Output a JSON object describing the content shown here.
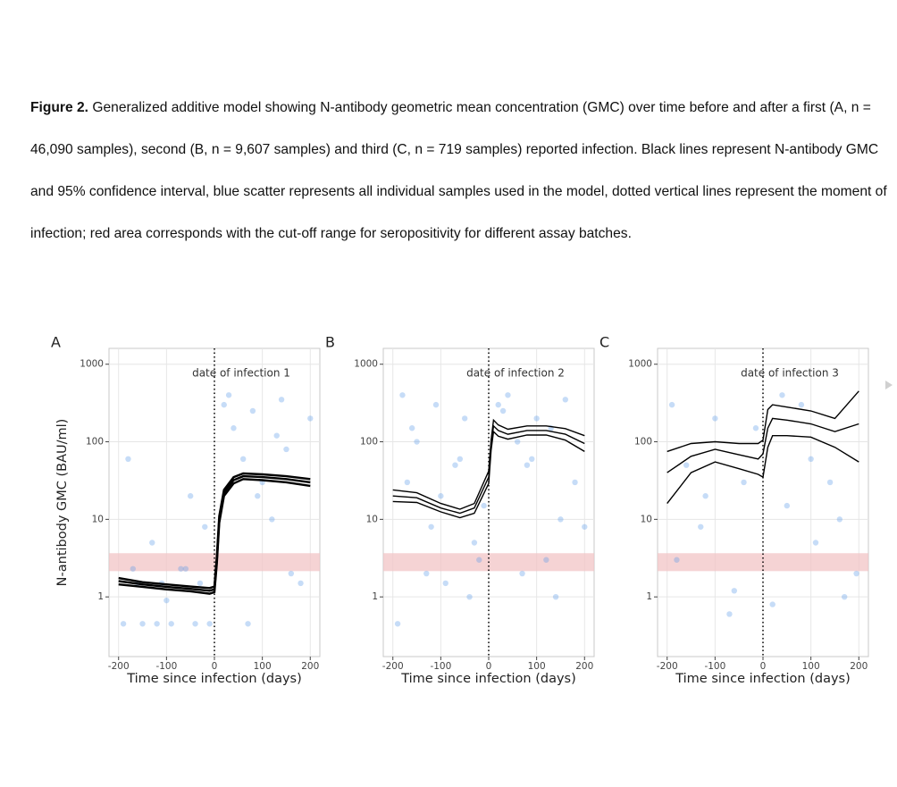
{
  "caption": {
    "label": "Figure 2.",
    "text": "Generalized additive model showing N-antibody geometric mean concentration (GMC) over time before and after a first (A, n = 46,090 samples), second (B, n = 9,607 samples) and third (C, n = 719 samples) reported infection. Black lines represent N-antibody GMC and 95% confidence interval, blue scatter represents all individual samples used in the model, dotted vertical lines represent the moment of infection; red area corresponds with the cut-off range for seropositivity for different assay batches."
  },
  "chart_data": [
    {
      "type": "line",
      "panel_label": "A",
      "annotation": "date of infection 1",
      "x_label": "Time since infection (days)",
      "y_label": "N-antibody GMC (BAU/ml)",
      "xlim": [
        -220,
        220
      ],
      "ylim": [
        0.17,
        1600
      ],
      "xticks": [
        -200,
        -100,
        0,
        100,
        200
      ],
      "yticks": [
        1,
        10,
        100,
        1000
      ],
      "log_y": true,
      "grid": true,
      "vline": 0,
      "cutoff_range": [
        2.15,
        3.66
      ],
      "cutoff_color": "#f2c4c6",
      "scatter": {
        "color": "#5b9be8",
        "x": [
          -190,
          -170,
          -150,
          -130,
          -110,
          -90,
          -70,
          -50,
          -30,
          -10,
          -180,
          -120,
          -60,
          -20,
          -160,
          -100,
          -40,
          20,
          40,
          60,
          80,
          100,
          120,
          140,
          160,
          180,
          200,
          30,
          90,
          150,
          70,
          130
        ],
        "y": [
          0.45,
          2.3,
          0.45,
          5,
          1.5,
          0.45,
          2.3,
          20,
          1.5,
          0.45,
          60,
          0.45,
          2.3,
          8,
          1.5,
          0.9,
          0.45,
          300,
          150,
          60,
          250,
          30,
          10,
          350,
          2,
          1.5,
          200,
          400,
          20,
          80,
          0.45,
          120
        ]
      },
      "series": [
        {
          "color": "#000000",
          "x": [
            -200,
            -150,
            -100,
            -50,
            -10,
            0,
            5,
            10,
            20,
            40,
            60,
            100,
            150,
            200
          ],
          "values": [
            1.6,
            1.45,
            1.35,
            1.27,
            1.2,
            1.25,
            3,
            10,
            22,
            32,
            36,
            35,
            33,
            30
          ]
        },
        {
          "color": "#000000",
          "x": [
            -200,
            -150,
            -100,
            -50,
            -10,
            0,
            5,
            10,
            20,
            40,
            60,
            100,
            150,
            200
          ],
          "values": [
            1.75,
            1.55,
            1.45,
            1.36,
            1.3,
            1.36,
            3.3,
            11,
            24,
            35,
            39,
            38,
            36,
            33
          ]
        },
        {
          "color": "#000000",
          "x": [
            -200,
            -150,
            -100,
            -50,
            -10,
            0,
            5,
            10,
            20,
            40,
            60,
            100,
            150,
            200
          ],
          "values": [
            1.45,
            1.35,
            1.25,
            1.18,
            1.1,
            1.15,
            2.7,
            9,
            20,
            29,
            33,
            32,
            30,
            27
          ]
        }
      ]
    },
    {
      "type": "line",
      "panel_label": "B",
      "annotation": "date of infection 2",
      "x_label": "Time since infection (days)",
      "xlim": [
        -220,
        220
      ],
      "ylim": [
        0.17,
        1600
      ],
      "xticks": [
        -200,
        -100,
        0,
        100,
        200
      ],
      "yticks": [
        1,
        10,
        100,
        1000
      ],
      "log_y": true,
      "grid": true,
      "vline": 0,
      "cutoff_range": [
        2.15,
        3.66
      ],
      "cutoff_color": "#f2c4c6",
      "scatter": {
        "color": "#5b9be8",
        "x": [
          -190,
          -170,
          -150,
          -130,
          -110,
          -90,
          -70,
          -50,
          -30,
          -10,
          -180,
          -120,
          -60,
          -20,
          -160,
          -100,
          -40,
          20,
          40,
          60,
          80,
          100,
          120,
          140,
          160,
          180,
          200,
          30,
          90,
          150,
          70,
          130
        ],
        "y": [
          0.45,
          30,
          100,
          2,
          300,
          1.5,
          50,
          200,
          5,
          15,
          400,
          8,
          60,
          3,
          150,
          20,
          1,
          300,
          400,
          100,
          50,
          200,
          3,
          1,
          350,
          30,
          8,
          250,
          60,
          10,
          2,
          150
        ]
      },
      "series": [
        {
          "color": "#000000",
          "x": [
            -200,
            -150,
            -100,
            -60,
            -30,
            0,
            5,
            10,
            20,
            40,
            80,
            120,
            160,
            200
          ],
          "values": [
            20,
            19,
            14,
            12,
            14,
            35,
            90,
            160,
            140,
            125,
            140,
            140,
            125,
            95
          ]
        },
        {
          "color": "#000000",
          "x": [
            -200,
            -150,
            -100,
            -60,
            -30,
            0,
            5,
            10,
            20,
            40,
            80,
            120,
            160,
            200
          ],
          "values": [
            24,
            22,
            16,
            13.5,
            16,
            42,
            105,
            190,
            165,
            145,
            160,
            160,
            148,
            120
          ]
        },
        {
          "color": "#000000",
          "x": [
            -200,
            -150,
            -100,
            -60,
            -30,
            0,
            5,
            10,
            20,
            40,
            80,
            120,
            160,
            200
          ],
          "values": [
            17,
            16.5,
            12.5,
            10.5,
            12,
            29,
            78,
            135,
            118,
            108,
            122,
            122,
            105,
            75
          ]
        }
      ]
    },
    {
      "type": "line",
      "panel_label": "C",
      "annotation": "date of infection 3",
      "x_label": "Time since infection (days)",
      "xlim": [
        -220,
        220
      ],
      "ylim": [
        0.17,
        1600
      ],
      "xticks": [
        -200,
        -100,
        0,
        100,
        200
      ],
      "yticks": [
        1,
        10,
        100,
        1000
      ],
      "log_y": true,
      "grid": true,
      "vline": 0,
      "cutoff_range": [
        2.15,
        3.66
      ],
      "cutoff_color": "#f2c4c6",
      "scatter": {
        "color": "#5b9be8",
        "x": [
          -190,
          -160,
          -130,
          -100,
          -70,
          -40,
          -15,
          -180,
          -120,
          -60,
          20,
          50,
          80,
          110,
          140,
          170,
          195,
          40,
          100,
          160
        ],
        "y": [
          300,
          50,
          8,
          200,
          0.6,
          30,
          150,
          3,
          20,
          1.2,
          0.8,
          15,
          300,
          5,
          30,
          1,
          2,
          400,
          60,
          10
        ]
      },
      "series": [
        {
          "color": "#000000",
          "x": [
            -200,
            -150,
            -100,
            -50,
            -10,
            0,
            10,
            20,
            50,
            100,
            150,
            200
          ],
          "values": [
            40,
            65,
            80,
            68,
            60,
            70,
            150,
            200,
            190,
            170,
            135,
            170
          ]
        },
        {
          "color": "#000000",
          "x": [
            -200,
            -150,
            -100,
            -50,
            -10,
            0,
            10,
            20,
            50,
            100,
            150,
            200
          ],
          "values": [
            75,
            95,
            100,
            95,
            95,
            105,
            260,
            300,
            280,
            250,
            200,
            450
          ]
        },
        {
          "color": "#000000",
          "x": [
            -200,
            -150,
            -100,
            -50,
            -10,
            0,
            10,
            20,
            50,
            100,
            150,
            200
          ],
          "values": [
            16,
            40,
            55,
            45,
            38,
            35,
            85,
            120,
            120,
            115,
            85,
            55
          ]
        }
      ]
    }
  ]
}
